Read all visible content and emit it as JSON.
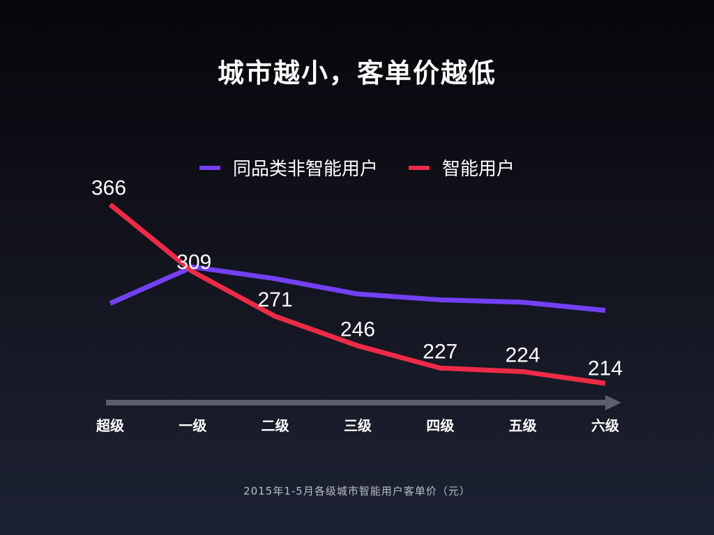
{
  "title": "城市越小，客单价越低",
  "footnote": "2015年1-5月各级城市智能用户客单价（元）",
  "colors": {
    "series_non_smart": "#7440f5",
    "series_smart": "#ee2b47",
    "axis_arrow": "#5b5f6e"
  },
  "chart_data": {
    "type": "line",
    "categories": [
      "超级",
      "一级",
      "二级",
      "三级",
      "四级",
      "五级",
      "六级"
    ],
    "series": [
      {
        "name": "同品类非智能用户",
        "color": "#7440f5",
        "values": [
          282,
          313,
          303,
          290,
          285,
          283,
          276
        ],
        "labeled": false
      },
      {
        "name": "智能用户",
        "color": "#ee2b47",
        "values": [
          366,
          309,
          271,
          246,
          227,
          224,
          214
        ],
        "labeled": true
      }
    ],
    "data_labels": [
      "366",
      "309",
      "271",
      "246",
      "227",
      "224",
      "214"
    ],
    "ylim": [
      200,
      380
    ],
    "legend": "top-center",
    "grid": false
  }
}
